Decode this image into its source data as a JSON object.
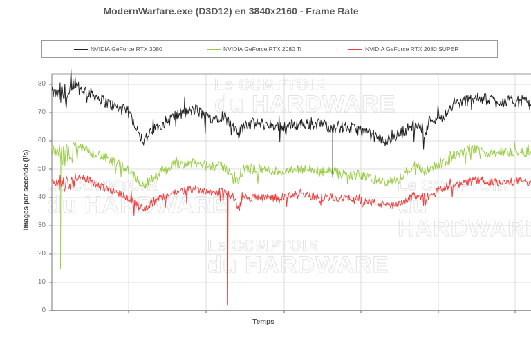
{
  "chart_data": {
    "type": "line",
    "title": "ModernWarfare.exe (D3D12) en 3840x2160 - Frame Rate",
    "xlabel": "Temps",
    "ylabel": "Images par seconde (i/s)",
    "ylim": [
      0,
      80
    ],
    "yticks": [
      0,
      10,
      20,
      30,
      40,
      50,
      60,
      70,
      80
    ],
    "grid": true,
    "legend_position": "top",
    "x": [
      0,
      2,
      4,
      5,
      8,
      10,
      12,
      16,
      18,
      19,
      22,
      26,
      30,
      33,
      36,
      38,
      39,
      40,
      44,
      48,
      52,
      56,
      58,
      59,
      60,
      64,
      68,
      70,
      72,
      74,
      76,
      78,
      79,
      80,
      82,
      84,
      86,
      88,
      90,
      94,
      98,
      100
    ],
    "series": [
      {
        "name": "NVIDIA GeForce RTX 3080",
        "color": "#222222",
        "values": [
          77,
          76,
          76,
          79,
          77,
          75,
          73,
          70,
          64,
          60,
          65,
          69,
          71,
          68,
          69,
          64,
          62,
          66,
          66,
          65,
          66,
          66,
          65,
          65,
          65,
          64,
          61,
          60,
          62,
          64,
          66,
          63,
          68,
          68,
          69,
          73,
          74,
          75,
          75,
          74,
          74,
          73
        ],
        "noise": 3
      },
      {
        "name": "NVIDIA GeForce RTX 2080 Ti",
        "color": "#9acd46",
        "values": [
          57,
          55,
          55,
          58,
          56,
          55,
          53,
          50,
          46,
          44,
          48,
          52,
          52,
          51,
          51,
          48,
          45,
          50,
          50,
          49,
          50,
          49,
          49,
          49,
          48,
          48,
          46,
          45,
          46,
          49,
          52,
          49,
          51,
          51,
          52,
          55,
          56,
          57,
          56,
          56,
          56,
          56
        ],
        "noise": 2.5,
        "spikes": [
          {
            "x": 1.8,
            "value": 15
          }
        ]
      },
      {
        "name": "NVIDIA GeForce RTX 2080 SUPER",
        "color": "#f04040",
        "values": [
          46,
          45,
          45,
          47,
          46,
          44,
          43,
          40,
          37,
          36,
          39,
          42,
          43,
          42,
          42,
          40,
          36,
          40,
          40,
          40,
          41,
          40,
          40,
          40,
          40,
          39,
          38,
          37,
          37,
          39,
          41,
          40,
          42,
          42,
          43,
          44,
          45,
          46,
          46,
          45,
          46,
          45
        ],
        "noise": 2,
        "spikes": [
          {
            "x": 36.7,
            "value": 2
          }
        ]
      }
    ]
  },
  "header": {
    "title": "ModernWarfare.exe (D3D12) en 3840x2160 - Frame Rate"
  },
  "legend": {
    "items": [
      {
        "label": "NVIDIA GeForce RTX 3080",
        "color": "#222222"
      },
      {
        "label": "NVIDIA GeForce RTX 2080 Ti",
        "color": "#9acd46"
      },
      {
        "label": "NVIDIA GeForce RTX 2080 SUPER",
        "color": "#f04040"
      }
    ]
  },
  "axes": {
    "y_label": "Images par seconde (i/s)",
    "x_label": "Temps",
    "y_ticks": [
      "80",
      "70",
      "60",
      "50",
      "40",
      "30",
      "20",
      "10",
      "0"
    ]
  },
  "watermark": {
    "line1": "Le COMPTOIR",
    "line2": "du HARDWARE"
  }
}
